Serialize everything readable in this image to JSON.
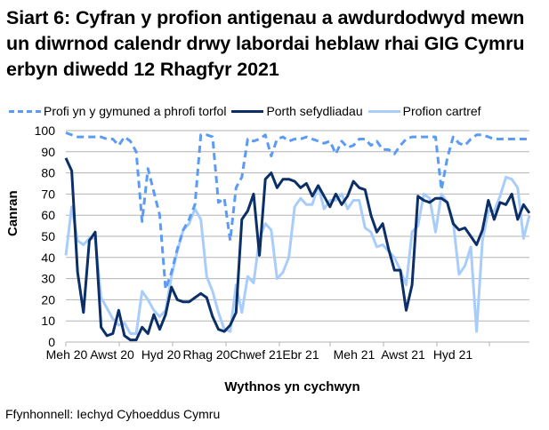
{
  "title": "Siart 6: Cyfran y profion antigenau a awdurdodwyd mewn un diwrnod calendr drwy labordai heblaw rhai GIG Cymru erbyn diwedd 12 Rhagfyr 2021",
  "legend": [
    {
      "label": "Profi yn y gymuned a phrofi torfol",
      "style": "dashed",
      "color": "#5b9bf5"
    },
    {
      "label": "Porth sefydliadau",
      "style": "solid",
      "color": "#0b2f66"
    },
    {
      "label": "Profion cartref",
      "style": "solid",
      "color": "#a9cdfa"
    }
  ],
  "source": "Ffynhonnell: Iechyd Cyhoeddus Cymru",
  "chart_data": {
    "type": "line",
    "title": "Siart 6: Cyfran y profion antigenau a awdurdodwyd mewn un diwrnod calendr drwy labordai heblaw rhai GIG Cymru erbyn diwedd 12 Rhagfyr 2021",
    "xlabel": "Wythnos yn cychwyn",
    "ylabel": "Canran",
    "ylim": [
      0,
      100
    ],
    "yticks": [
      0,
      10,
      20,
      30,
      40,
      50,
      60,
      70,
      80,
      90,
      100
    ],
    "xtick_labels": [
      "Meh 20",
      "Awst 20",
      "Hyd 20",
      "Rhag 20",
      "Chwef 21",
      "Ebr 21",
      "Meh 21",
      "Awst 21",
      "Hyd 21"
    ],
    "grid": true,
    "legend_position": "top",
    "n_points": 80,
    "series": [
      {
        "name": "Profi yn y gymuned a phrofi torfol",
        "style": "dashed",
        "color": "#5b9bf5",
        "values": [
          99,
          98,
          97,
          97,
          97,
          97,
          97,
          96,
          96,
          93,
          97,
          95,
          90,
          57,
          82,
          71,
          60,
          25,
          33,
          44,
          53,
          58,
          65,
          98,
          98,
          97,
          66,
          68,
          48,
          73,
          78,
          96,
          95,
          96,
          98,
          88,
          96,
          97,
          95,
          96,
          96,
          97,
          96,
          95,
          94,
          95,
          89,
          95,
          92,
          93,
          96,
          96,
          93,
          95,
          91,
          91,
          89,
          93,
          96,
          97,
          97,
          97,
          97,
          97,
          72,
          87,
          97,
          94,
          93,
          96,
          98,
          98,
          97,
          96,
          96,
          96,
          96,
          96,
          96,
          96
        ]
      },
      {
        "name": "Porth sefydliadau",
        "style": "solid",
        "color": "#0b2f66",
        "values": [
          87,
          81,
          33,
          14,
          48,
          52,
          7,
          3,
          4,
          15,
          3,
          1,
          1,
          7,
          4,
          13,
          6,
          13,
          26,
          20,
          19,
          19,
          21,
          23,
          21,
          12,
          6,
          5,
          8,
          14,
          58,
          62,
          70,
          41,
          77,
          80,
          73,
          77,
          77,
          76,
          73,
          75,
          69,
          74,
          69,
          64,
          70,
          65,
          69,
          76,
          73,
          72,
          60,
          52,
          56,
          44,
          34,
          34,
          15,
          27,
          69,
          67,
          66,
          68,
          68,
          66,
          56,
          53,
          54,
          50,
          46,
          53,
          67,
          58,
          66,
          65,
          70,
          58,
          65,
          61
        ]
      },
      {
        "name": "Profion cartref",
        "style": "solid",
        "color": "#a9cdfa",
        "values": [
          41,
          64,
          48,
          46,
          49,
          49,
          21,
          16,
          11,
          8,
          9,
          4,
          4,
          24,
          20,
          15,
          12,
          15,
          31,
          43,
          53,
          56,
          63,
          58,
          31,
          24,
          14,
          6,
          5,
          27,
          14,
          31,
          28,
          49,
          56,
          53,
          30,
          33,
          40,
          64,
          68,
          65,
          65,
          74,
          63,
          67,
          67,
          70,
          63,
          67,
          67,
          54,
          52,
          45,
          46,
          43,
          40,
          34,
          27,
          52,
          55,
          70,
          68,
          52,
          70,
          66,
          57,
          32,
          36,
          45,
          5,
          48,
          62,
          62,
          69,
          78,
          77,
          73,
          49,
          60
        ]
      }
    ]
  }
}
